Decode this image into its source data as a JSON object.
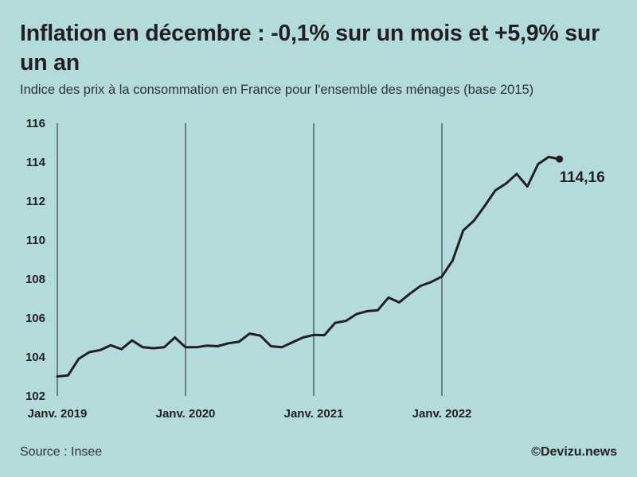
{
  "header": {
    "title": "Inflation en décembre : -0,1% sur un mois et +5,9% sur un an",
    "subtitle": "Indice des prix à la consommation en France pour l'ensemble des ménages (base 2015)"
  },
  "footer": {
    "source": "Source : Insee",
    "credit": "©Devizu.news"
  },
  "colors": {
    "background": "#b3dbdc",
    "line": "#231f20"
  },
  "chart_data": {
    "type": "line",
    "title": "Inflation en décembre : -0,1% sur un mois et +5,9% sur un an",
    "subtitle": "Indice des prix à la consommation en France pour l'ensemble des ménages (base 2015)",
    "xlabel": "",
    "ylabel": "",
    "ylim": [
      102,
      116
    ],
    "yticks": [
      "102",
      "104",
      "106",
      "108",
      "110",
      "112",
      "114",
      "116"
    ],
    "xticks": [
      {
        "label": "Janv. 2019",
        "index": 0
      },
      {
        "label": "Janv. 2020",
        "index": 12
      },
      {
        "label": "Janv. 2021",
        "index": 24
      },
      {
        "label": "Janv. 2022",
        "index": 36
      }
    ],
    "grid": "vertical lines at January of each year",
    "end_label": "114,16",
    "series": [
      {
        "name": "Indice des prix à la consommation",
        "x": [
          "2019-01",
          "2019-02",
          "2019-03",
          "2019-04",
          "2019-05",
          "2019-06",
          "2019-07",
          "2019-08",
          "2019-09",
          "2019-10",
          "2019-11",
          "2019-12",
          "2020-01",
          "2020-02",
          "2020-03",
          "2020-04",
          "2020-05",
          "2020-06",
          "2020-07",
          "2020-08",
          "2020-09",
          "2020-10",
          "2020-11",
          "2020-12",
          "2021-01",
          "2021-02",
          "2021-03",
          "2021-04",
          "2021-05",
          "2021-06",
          "2021-07",
          "2021-08",
          "2021-09",
          "2021-10",
          "2021-11",
          "2021-12",
          "2022-01",
          "2022-02",
          "2022-03",
          "2022-04",
          "2022-05",
          "2022-06",
          "2022-07",
          "2022-08",
          "2022-09",
          "2022-10",
          "2022-11",
          "2022-12"
        ],
        "values": [
          103.0,
          103.05,
          103.9,
          104.25,
          104.35,
          104.6,
          104.4,
          104.85,
          104.5,
          104.45,
          104.5,
          105.0,
          104.5,
          104.5,
          104.58,
          104.55,
          104.7,
          104.78,
          105.2,
          105.1,
          104.55,
          104.5,
          104.75,
          105.0,
          105.13,
          105.12,
          105.75,
          105.85,
          106.2,
          106.35,
          106.4,
          107.05,
          106.8,
          107.25,
          107.65,
          107.85,
          108.13,
          108.95,
          110.5,
          111.0,
          111.75,
          112.55,
          112.9,
          113.4,
          112.75,
          113.9,
          114.27,
          114.16
        ]
      }
    ]
  }
}
